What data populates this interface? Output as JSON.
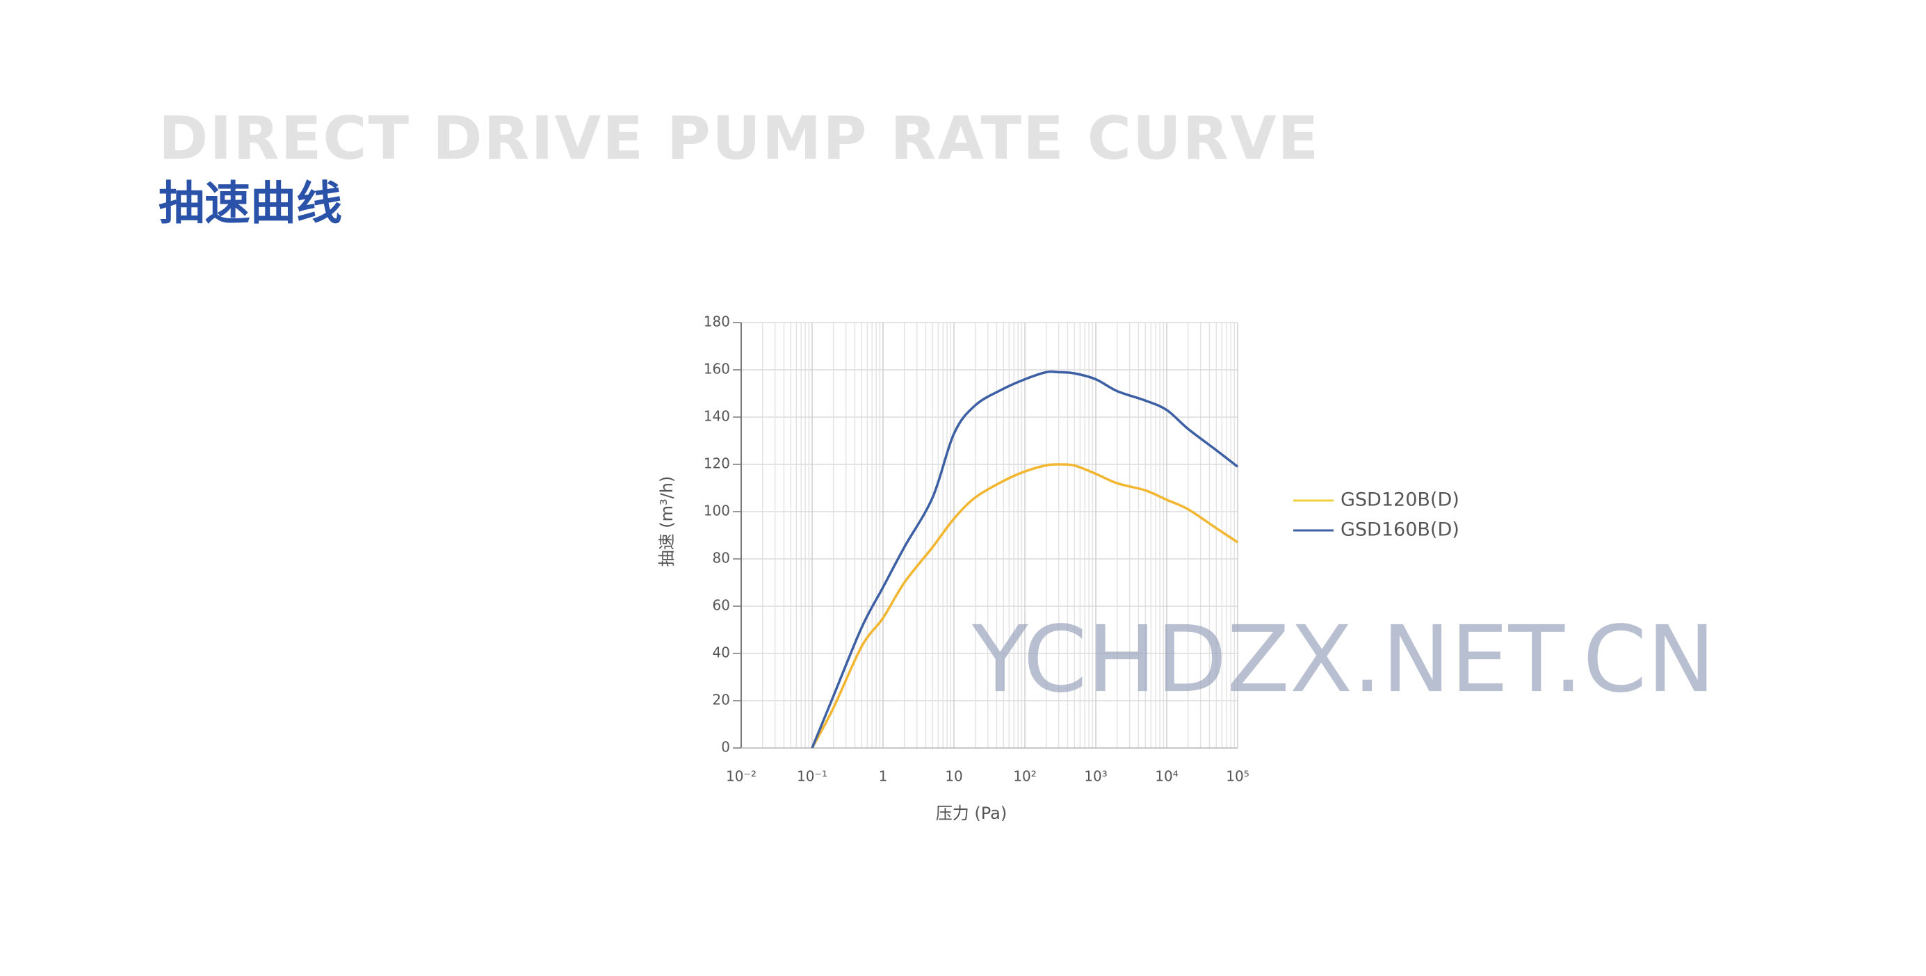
{
  "title": "DIRECT DRIVE PUMP RATE CURVE",
  "subtitle": "抽速曲线",
  "chart_data": {
    "type": "line",
    "x_label": "压力 (Pa)",
    "y_label": "抽速 (m³/h)",
    "x": [
      0.1,
      0.2,
      0.5,
      1,
      2,
      5,
      10,
      20,
      50,
      100,
      200,
      300,
      500,
      1000,
      2000,
      5000,
      10000,
      20000,
      50000,
      100000
    ],
    "series": [
      {
        "name": "GSD120B(D)",
        "color": "#f2b630",
        "legend_color": "#eed038",
        "values": [
          0,
          17,
          43,
          55,
          70,
          85,
          97,
          106,
          113,
          117,
          119.6,
          120,
          119.5,
          116,
          112,
          109,
          105,
          101,
          93,
          87
        ]
      },
      {
        "name": "GSD160B(D)",
        "color": "#3d5fa3",
        "legend_color": "#3d5fa3",
        "values": [
          0,
          22,
          51,
          68,
          85,
          106,
          133,
          145,
          152,
          156,
          159,
          159,
          158.5,
          156,
          151,
          147,
          143,
          135,
          126,
          119
        ]
      }
    ],
    "xlim": [
      0.01,
      100000
    ],
    "ylim": [
      0,
      180
    ],
    "x_log": true,
    "xticks": [
      {
        "value": 0.01,
        "label": "10⁻²"
      },
      {
        "value": 0.1,
        "label": "10⁻¹"
      },
      1,
      10,
      {
        "value": 100,
        "label": "10²"
      },
      {
        "value": 1000,
        "label": "10³"
      },
      {
        "value": 10000,
        "label": "10⁴"
      },
      {
        "value": 100000,
        "label": "10⁵"
      }
    ],
    "yticks": [
      0,
      20,
      40,
      60,
      80,
      100,
      120,
      140,
      160,
      180
    ],
    "grid": true,
    "minor_grid": true,
    "legend": "right",
    "watermark": "YCHDZX.NET.CN"
  }
}
